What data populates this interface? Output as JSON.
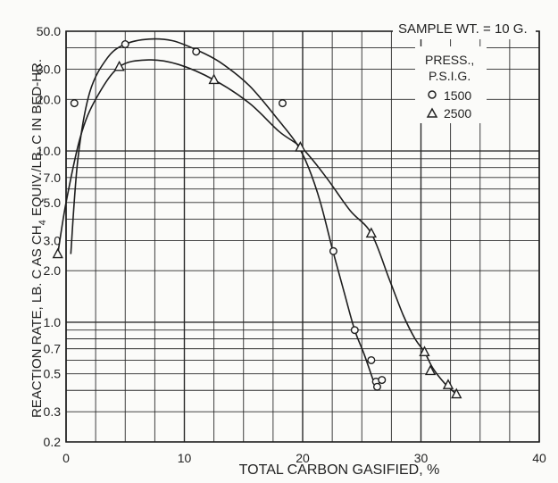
{
  "chart_data": {
    "type": "scatter",
    "title": "",
    "xlabel": "TOTAL CARBON GASIFIED, %",
    "ylabel": "REACTION RATE, LB. C AS CH4 EQUIV./LB. C IN BED-HR.",
    "ylabel_parts": [
      "REACTION RATE, LB. C AS CH",
      "4",
      " EQUIV./LB. C IN BED-HR."
    ],
    "x_scale": "linear",
    "y_scale": "log",
    "xlim": [
      0,
      40
    ],
    "ylim": [
      0.2,
      50
    ],
    "grid": true,
    "x_tick_labels": [
      "0",
      "10",
      "20",
      "30",
      "40"
    ],
    "y_tick_labels": [
      "50.0",
      "30.0",
      "20.0",
      "10.0",
      "7.0",
      "5.0",
      "3.0",
      "2.0",
      "1.0",
      "0.7",
      "0.5",
      "0.3",
      "0.2"
    ],
    "annotation": "SAMPLE WT. = 10 G.",
    "legend_title_lines": [
      "PRESS.,",
      "P.S.I.G."
    ],
    "legend_position": "top-right",
    "series": [
      {
        "name": "1500",
        "marker": "circle",
        "points": [
          [
            0.7,
            19
          ],
          [
            5,
            42
          ],
          [
            11,
            38
          ],
          [
            18.3,
            19
          ],
          [
            22.6,
            2.6
          ],
          [
            24.4,
            0.9
          ],
          [
            25.8,
            0.6
          ],
          [
            26.2,
            0.45
          ],
          [
            26.3,
            0.42
          ],
          [
            26.7,
            0.46
          ]
        ],
        "curve": [
          [
            0.4,
            2.5
          ],
          [
            1,
            9
          ],
          [
            2,
            22
          ],
          [
            3.5,
            35
          ],
          [
            5,
            42
          ],
          [
            7,
            45
          ],
          [
            9,
            44
          ],
          [
            11,
            39
          ],
          [
            13,
            33
          ],
          [
            15.5,
            24
          ],
          [
            18,
            15
          ],
          [
            19.5,
            11
          ],
          [
            20.5,
            8
          ],
          [
            21.5,
            5
          ],
          [
            22.5,
            2.7
          ],
          [
            23.5,
            1.5
          ],
          [
            24.4,
            0.9
          ],
          [
            25.2,
            0.65
          ],
          [
            26,
            0.45
          ]
        ]
      },
      {
        "name": "2500",
        "marker": "triangle",
        "points": [
          [
            -0.7,
            2.5
          ],
          [
            4.5,
            31
          ],
          [
            12.5,
            26
          ],
          [
            19.8,
            10.5
          ],
          [
            25.8,
            3.3
          ],
          [
            30.3,
            0.67
          ],
          [
            30.8,
            0.52
          ],
          [
            32.3,
            0.43
          ],
          [
            33,
            0.38
          ]
        ],
        "curve": [
          [
            -0.7,
            2.5
          ],
          [
            0,
            5
          ],
          [
            1.2,
            12
          ],
          [
            2.5,
            20
          ],
          [
            4.5,
            31
          ],
          [
            7,
            34
          ],
          [
            9.5,
            32
          ],
          [
            12.5,
            26
          ],
          [
            15.5,
            19
          ],
          [
            18,
            13
          ],
          [
            20,
            10.3
          ],
          [
            22,
            7
          ],
          [
            24,
            4.5
          ],
          [
            25.8,
            3.3
          ],
          [
            27.3,
            1.8
          ],
          [
            28.5,
            1.1
          ],
          [
            29.5,
            0.8
          ],
          [
            30.3,
            0.67
          ],
          [
            31,
            0.54
          ],
          [
            32,
            0.44
          ],
          [
            33,
            0.38
          ]
        ]
      }
    ]
  }
}
